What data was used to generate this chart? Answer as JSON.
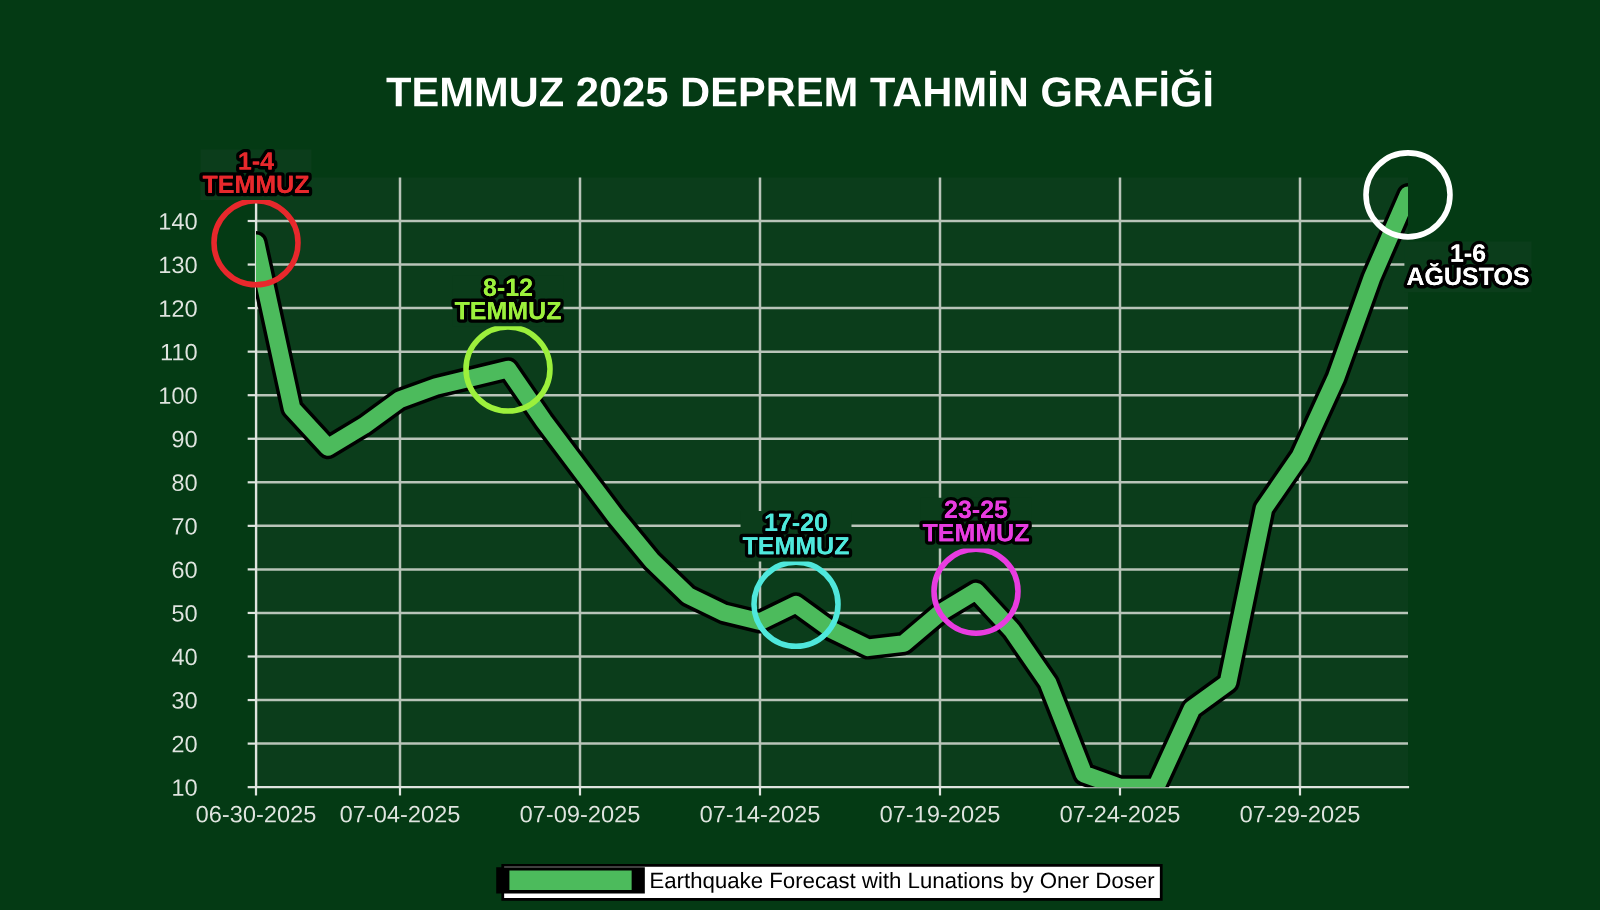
{
  "chart_data": {
    "type": "line",
    "title": "TEMMUZ 2025 DEPREM TAHMİN GRAFİĞİ",
    "x": [
      "2025-06-30",
      "2025-07-01",
      "2025-07-02",
      "2025-07-03",
      "2025-07-04",
      "2025-07-05",
      "2025-07-06",
      "2025-07-07",
      "2025-07-08",
      "2025-07-09",
      "2025-07-10",
      "2025-07-11",
      "2025-07-12",
      "2025-07-13",
      "2025-07-14",
      "2025-07-15",
      "2025-07-16",
      "2025-07-17",
      "2025-07-18",
      "2025-07-19",
      "2025-07-20",
      "2025-07-21",
      "2025-07-22",
      "2025-07-23",
      "2025-07-24",
      "2025-07-25",
      "2025-07-26",
      "2025-07-27",
      "2025-07-28",
      "2025-07-29",
      "2025-07-30",
      "2025-07-31",
      "2025-08-01"
    ],
    "series": [
      {
        "name": "Earthquake Forecast with Lunations by Oner Doser",
        "color": "#4cbb5c",
        "values": [
          135,
          97,
          88,
          93,
          99,
          102,
          104,
          106,
          94,
          83,
          72,
          62,
          54,
          50,
          48,
          52,
          46,
          42,
          43,
          50,
          55,
          46,
          34,
          13,
          10,
          10,
          28,
          34,
          74,
          86,
          104,
          127,
          146
        ]
      }
    ],
    "xlim": [
      "2025-06-30",
      "2025-08-01"
    ],
    "xticks": [
      {
        "value": "2025-06-30",
        "label": "06-30-2025"
      },
      {
        "value": "2025-07-04",
        "label": "07-04-2025"
      },
      {
        "value": "2025-07-09",
        "label": "07-09-2025"
      },
      {
        "value": "2025-07-14",
        "label": "07-14-2025"
      },
      {
        "value": "2025-07-19",
        "label": "07-19-2025"
      },
      {
        "value": "2025-07-24",
        "label": "07-24-2025"
      },
      {
        "value": "2025-07-29",
        "label": "07-29-2025"
      }
    ],
    "ylim": [
      10,
      150
    ],
    "yticks": [
      10,
      20,
      30,
      40,
      50,
      60,
      70,
      80,
      90,
      100,
      110,
      120,
      130,
      140
    ],
    "annotations": [
      {
        "text": "1-4\nTEMMUZ",
        "x": "2025-06-30",
        "y": 135
      },
      {
        "text": "8-12\nTEMMUZ",
        "x": "2025-07-07",
        "y": 106
      },
      {
        "text": "17-20\nTEMMUZ",
        "x": "2025-07-15",
        "y": 52
      },
      {
        "text": "23-25\nTEMMUZ",
        "x": "2025-07-20",
        "y": 55
      },
      {
        "text": "1-6\nAĞUSTOS",
        "x": "2025-08-01",
        "y": 146
      }
    ],
    "grid": true,
    "legend": "bottom"
  }
}
